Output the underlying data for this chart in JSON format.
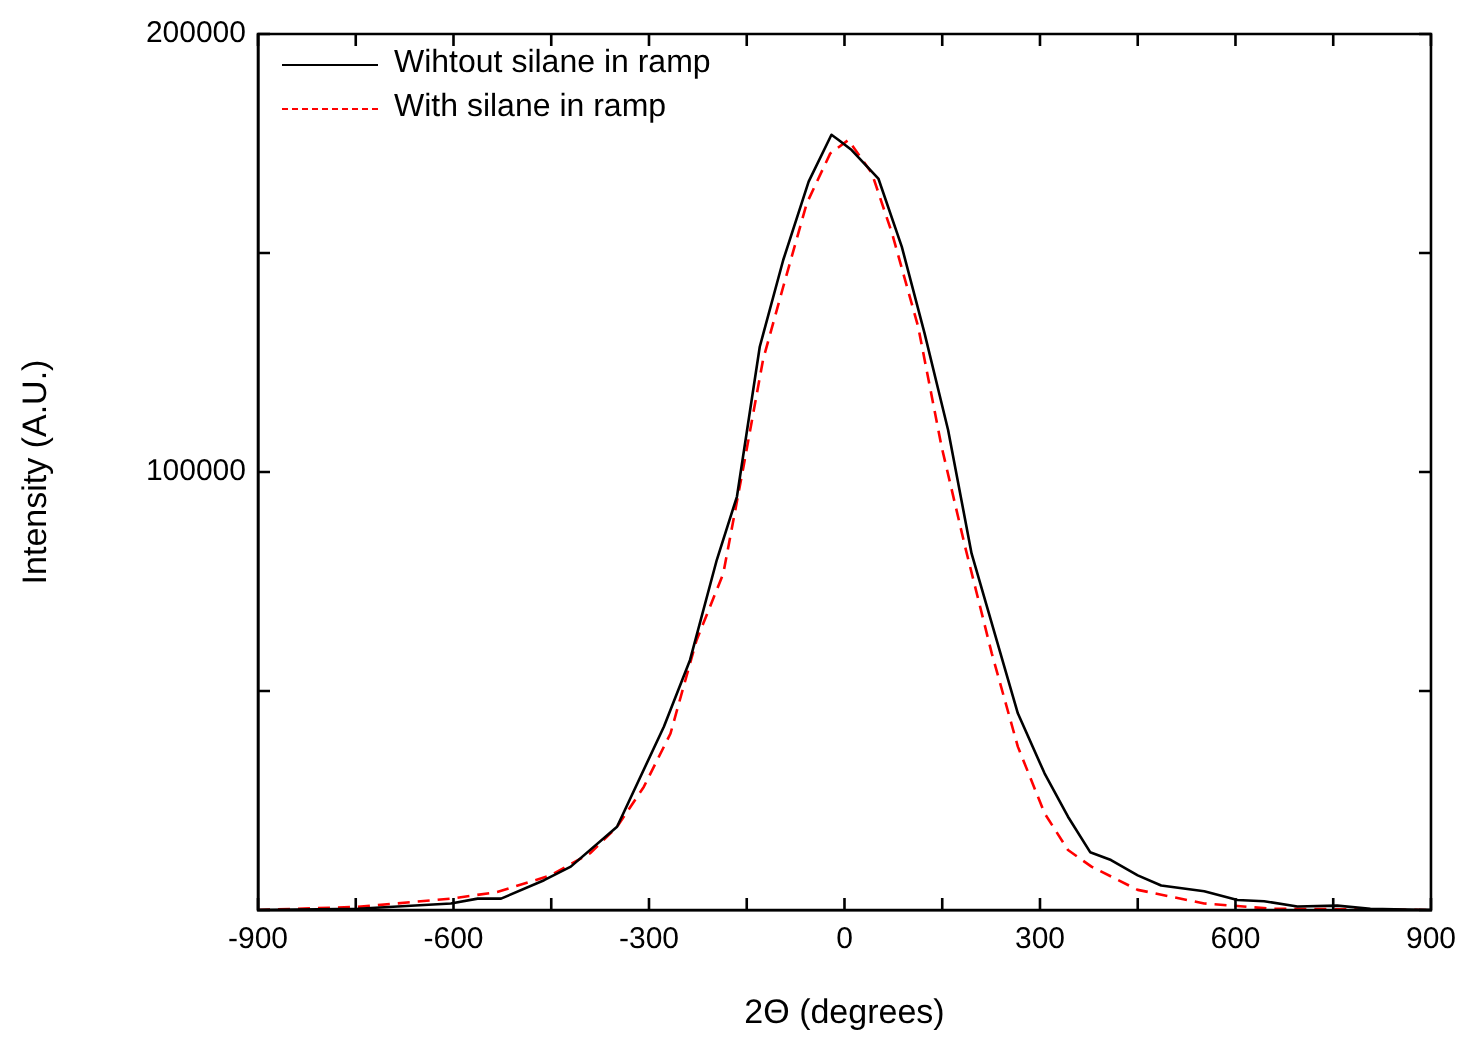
{
  "chart_data": {
    "type": "line",
    "xlabel": "2Θ (degrees)",
    "ylabel": "Intensity (A.U.)",
    "xlim": [
      -900,
      900
    ],
    "ylim": [
      0,
      200000
    ],
    "xticks": [
      -900,
      {
        "value": -750,
        "label": null
      },
      -600,
      {
        "value": -450,
        "label": null
      },
      -300,
      {
        "value": -150,
        "label": null
      },
      0,
      {
        "value": 150,
        "label": null
      },
      300,
      {
        "value": 450,
        "label": null
      },
      600,
      {
        "value": 750,
        "label": null
      },
      900
    ],
    "yticks": [
      {
        "value": 0,
        "label": null
      },
      {
        "value": 50000,
        "label": null
      },
      100000,
      {
        "value": 150000,
        "label": null
      },
      200000
    ],
    "grid": false,
    "legend": "top left",
    "marker": "none",
    "series": [
      {
        "name": "Wihtout silane in ramp",
        "color": "#000000",
        "line_style": "solid",
        "x": [
          -900,
          -747,
          -604,
          -563,
          -527,
          -461,
          -420,
          -349,
          -277,
          -237,
          -196,
          -165,
          -130,
          -94,
          -55,
          -20,
          -9,
          11,
          52,
          88,
          123,
          159,
          195,
          266,
          307,
          343,
          377,
          409,
          450,
          486,
          552,
          603,
          644,
          695,
          756,
          807,
          900
        ],
        "values": [
          0,
          300,
          1500,
          2600,
          2600,
          6800,
          9900,
          19000,
          41900,
          57100,
          79900,
          94400,
          128600,
          148400,
          166300,
          177000,
          175800,
          173500,
          167000,
          151400,
          131600,
          109600,
          81400,
          44900,
          31200,
          21300,
          13200,
          11400,
          7900,
          5600,
          4300,
          2300,
          2000,
          800,
          1000,
          300,
          0
        ]
      },
      {
        "name": "With silane in ramp",
        "color": "#ff0000",
        "line_style": "dashed",
        "x": [
          -900,
          -747,
          -604,
          -533,
          -451,
          -390,
          -349,
          -308,
          -267,
          -227,
          -186,
          -155,
          -125,
          -94,
          -58,
          -22,
          6,
          42,
          73,
          113,
          149,
          185,
          226,
          266,
          307,
          343,
          379,
          450,
          552,
          654,
          900
        ],
        "values": [
          0,
          700,
          2600,
          4100,
          7900,
          13000,
          19000,
          28100,
          40300,
          61600,
          76800,
          101200,
          125600,
          142300,
          161300,
          172700,
          175800,
          168200,
          154500,
          133200,
          105800,
          83000,
          58600,
          37300,
          22100,
          13700,
          9900,
          4600,
          1500,
          300,
          0
        ]
      }
    ]
  }
}
